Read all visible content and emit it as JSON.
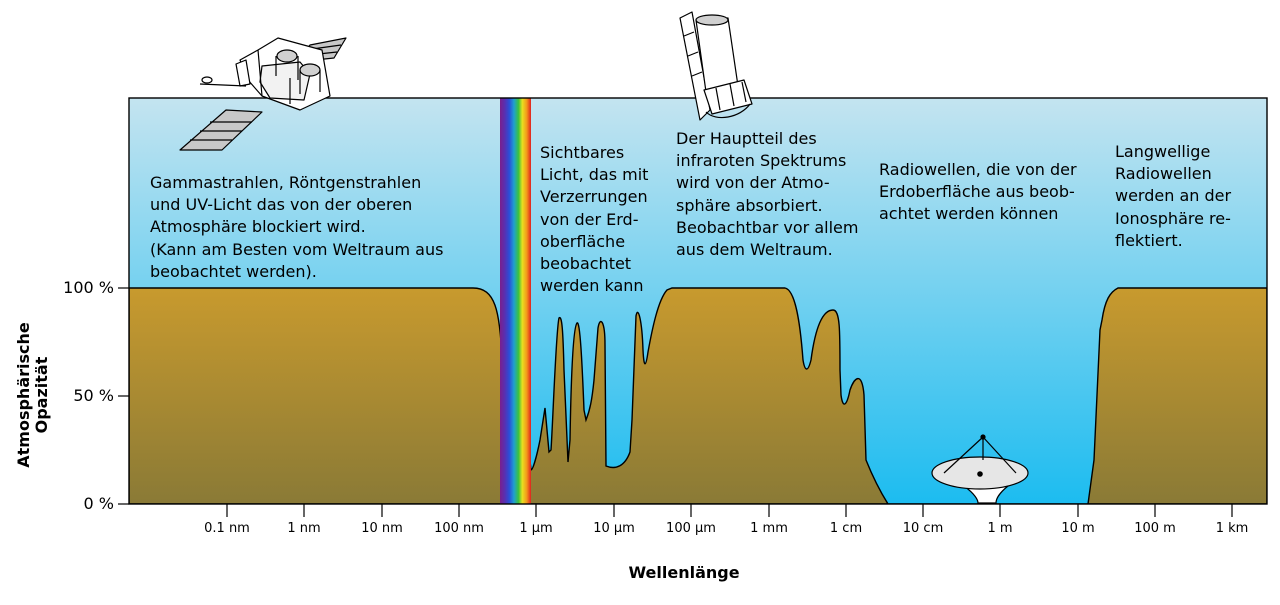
{
  "figure": {
    "x_axis_title": "Wellenlänge",
    "y_axis_title": "Atmosphärische\nOpazität",
    "y_ticks": [
      "0 %",
      "50 %",
      "100 %"
    ],
    "x_ticks": [
      "0.1 nm",
      "1 nm",
      "10 nm",
      "100 nm",
      "1 µm",
      "10 µm",
      "100 µm",
      "1 mm",
      "1 cm",
      "10 cm",
      "1 m",
      "10 m",
      "100 m",
      "1 km"
    ],
    "colors": {
      "sky_top": "#c4e4f0",
      "sky_bottom": "#1cbcf0",
      "ground_top": "#c89a2e",
      "ground_bottom": "#8a7a36",
      "outline": "#000000"
    },
    "icons": [
      "satellite-icon",
      "space-telescope-icon",
      "radio-dish-icon",
      "visible-spectrum-band"
    ]
  },
  "annotations": {
    "gamma": "Gammastrahlen, Röntgenstrahlen\nund UV-Licht das von der oberen\nAtmosphäre blockiert wird.\n(Kann am Besten vom Weltraum aus\nbeobachtet werden).",
    "visible": "Sichtbares\nLicht, das mit\nVerzerrungen\nvon der Erd-\noberfläche\nbeobachtet\nwerden kann",
    "infrared": "Der Hauptteil des\ninfraroten Spektrums\nwird von der Atmo-\nsphäre absorbiert.\nBeobachtbar vor allem\naus dem Weltraum.",
    "radio": "Radiowellen, die von der\nErdoberfläche aus beob-\nachtet werden können",
    "longwave": "Langwellige\nRadiowellen\nwerden an der\nIonosphäre re-\nflektiert."
  }
}
